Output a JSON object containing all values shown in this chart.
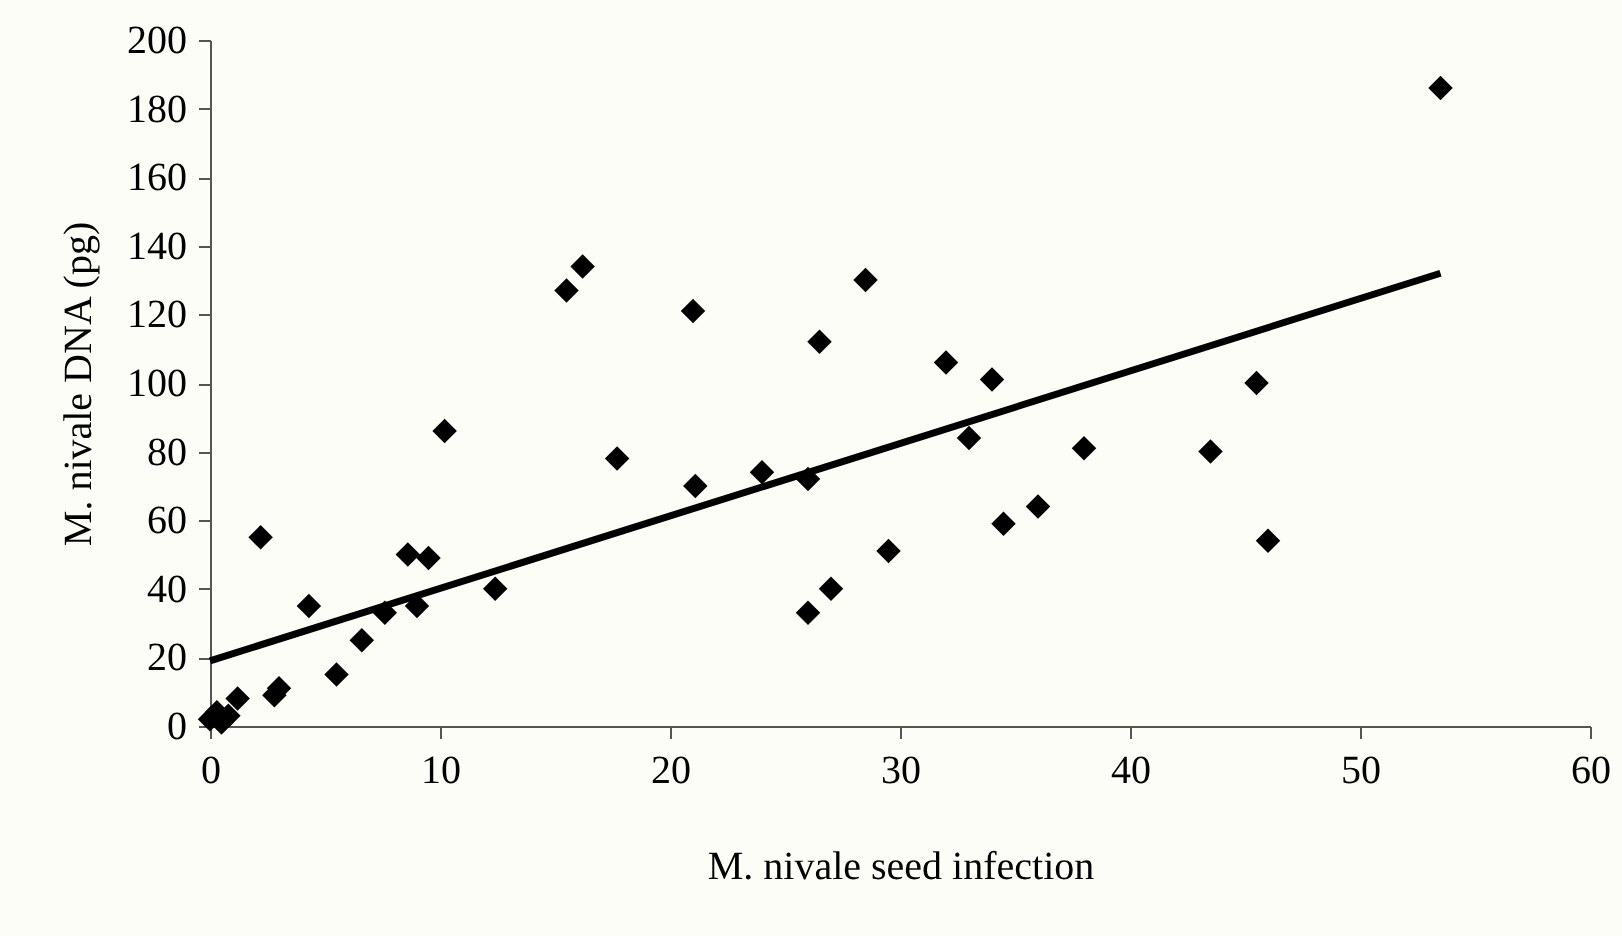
{
  "chart_data": {
    "type": "scatter",
    "xlabel": "M. nivale seed infection",
    "ylabel": "M. nivale DNA (pg)",
    "xlim": [
      0,
      60
    ],
    "ylim": [
      0,
      200
    ],
    "xticks": [
      0,
      10,
      20,
      30,
      40,
      50,
      60
    ],
    "yticks": [
      0,
      20,
      40,
      60,
      80,
      100,
      120,
      140,
      160,
      180,
      200
    ],
    "grid": false,
    "series": [
      {
        "color": "#000000",
        "marker": "diamond",
        "x": [
          0,
          0.3,
          0.5,
          0.8,
          1.2,
          2.2,
          2.8,
          3,
          4.3,
          5.5,
          6.6,
          7.6,
          8.6,
          9,
          9.5,
          10.2,
          12.4,
          15.5,
          16.2,
          17.7,
          21,
          21.1,
          24,
          26,
          26,
          26.5,
          27,
          28.5,
          29.5,
          32,
          33,
          34,
          34.5,
          36,
          38,
          43.5,
          45.5,
          46,
          53.5
        ],
        "values": [
          2,
          4,
          1,
          3,
          8,
          55,
          9,
          11,
          35,
          15,
          25,
          33,
          50,
          35,
          49,
          86,
          40,
          127,
          134,
          78,
          121,
          70,
          74,
          72,
          33,
          112,
          40,
          130,
          51,
          106,
          84,
          101,
          59,
          64,
          81,
          80,
          100,
          54,
          186
        ]
      },
      {
        "type": "line",
        "color": "#000000",
        "line_style": "solid",
        "x": [
          0,
          53.5
        ],
        "values": [
          19,
          132
        ]
      }
    ]
  }
}
